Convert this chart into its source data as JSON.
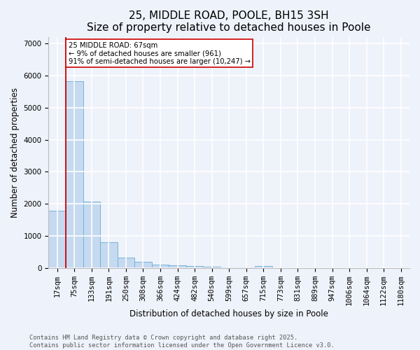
{
  "title": "25, MIDDLE ROAD, POOLE, BH15 3SH",
  "subtitle": "Size of property relative to detached houses in Poole",
  "xlabel": "Distribution of detached houses by size in Poole",
  "ylabel": "Number of detached properties",
  "categories": [
    "17sqm",
    "75sqm",
    "133sqm",
    "191sqm",
    "250sqm",
    "308sqm",
    "366sqm",
    "424sqm",
    "482sqm",
    "540sqm",
    "599sqm",
    "657sqm",
    "715sqm",
    "773sqm",
    "831sqm",
    "889sqm",
    "947sqm",
    "1006sqm",
    "1064sqm",
    "1122sqm",
    "1180sqm"
  ],
  "values": [
    1780,
    5820,
    2080,
    810,
    330,
    190,
    110,
    80,
    55,
    35,
    25,
    20,
    65,
    5,
    3,
    2,
    1,
    0,
    0,
    0,
    0
  ],
  "bar_color": "#c5d9f0",
  "bar_edge_color": "#6baed6",
  "vline_x_index": 1,
  "vline_color": "#cc0000",
  "annotation_text": "25 MIDDLE ROAD: 67sqm\n← 9% of detached houses are smaller (961)\n91% of semi-detached houses are larger (10,247) →",
  "annotation_box_color": "#ffffff",
  "annotation_box_edge": "#cc0000",
  "footer_text": "Contains HM Land Registry data © Crown copyright and database right 2025.\nContains public sector information licensed under the Open Government Licence v3.0.",
  "ylim": [
    0,
    7200
  ],
  "yticks": [
    0,
    1000,
    2000,
    3000,
    4000,
    5000,
    6000,
    7000
  ],
  "background_color": "#eef2fa",
  "plot_background": "#eef2fa",
  "grid_color": "#ffffff",
  "title_fontsize": 11,
  "axis_fontsize": 8.5,
  "tick_fontsize": 7.5,
  "footer_fontsize": 6.2
}
